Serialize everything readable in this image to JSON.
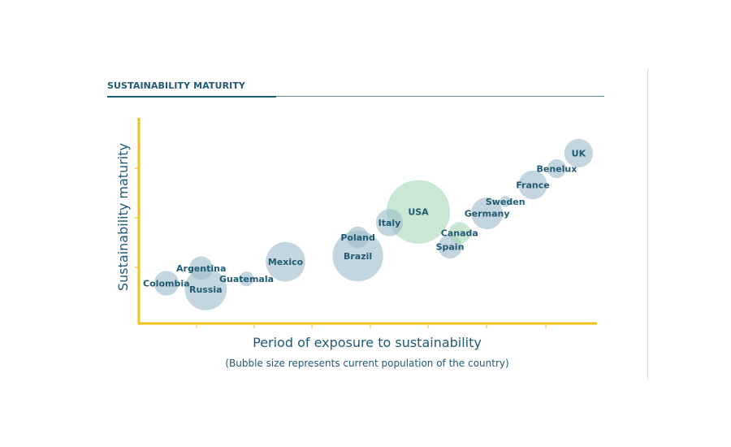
{
  "chart_data": {
    "type": "scatter",
    "title": "SUSTAINABILITY MATURITY",
    "subtitle": "(Bubble size represents current population of the country)",
    "xlabel": "Period of exposure to sustainability",
    "ylabel": "Sustainability maturity",
    "xlim": [
      0,
      10
    ],
    "ylim": [
      0,
      4.2
    ],
    "grid": false,
    "legend": "none",
    "colors": {
      "bubble": "#9ebdcc",
      "highlight": "#a8d8b8",
      "axis": "#f2c21b",
      "text": "#1f5a73"
    },
    "points": [
      {
        "label": "Colombia",
        "x": 0.6,
        "y": 0.82,
        "size": 50,
        "highlight": false
      },
      {
        "label": "Argentina",
        "x": 1.36,
        "y": 1.13,
        "size": 45,
        "highlight": false
      },
      {
        "label": "Russia",
        "x": 1.46,
        "y": 0.7,
        "size": 145,
        "highlight": false
      },
      {
        "label": "Guatemala",
        "x": 2.35,
        "y": 0.91,
        "size": 18,
        "highlight": false
      },
      {
        "label": "Mexico",
        "x": 3.2,
        "y": 1.26,
        "size": 128,
        "highlight": false
      },
      {
        "label": "Poland",
        "x": 4.78,
        "y": 1.76,
        "size": 38,
        "highlight": false
      },
      {
        "label": "Brazil",
        "x": 4.78,
        "y": 1.38,
        "size": 210,
        "highlight": false
      },
      {
        "label": "Italy",
        "x": 5.47,
        "y": 2.06,
        "size": 60,
        "highlight": false
      },
      {
        "label": "USA",
        "x": 6.1,
        "y": 2.28,
        "size": 330,
        "highlight": true
      },
      {
        "label": "Canada",
        "x": 7.0,
        "y": 1.85,
        "size": 38,
        "highlight": true
      },
      {
        "label": "Spain",
        "x": 6.79,
        "y": 1.57,
        "size": 47,
        "highlight": false
      },
      {
        "label": "Germany",
        "x": 7.6,
        "y": 2.25,
        "size": 83,
        "highlight": false
      },
      {
        "label": "Sweden",
        "x": 8.0,
        "y": 2.49,
        "size": 10,
        "highlight": false
      },
      {
        "label": "France",
        "x": 8.6,
        "y": 2.83,
        "size": 67,
        "highlight": false
      },
      {
        "label": "Benelux",
        "x": 9.12,
        "y": 3.16,
        "size": 29,
        "highlight": false
      },
      {
        "label": "UK",
        "x": 9.6,
        "y": 3.48,
        "size": 67,
        "highlight": false
      }
    ]
  }
}
